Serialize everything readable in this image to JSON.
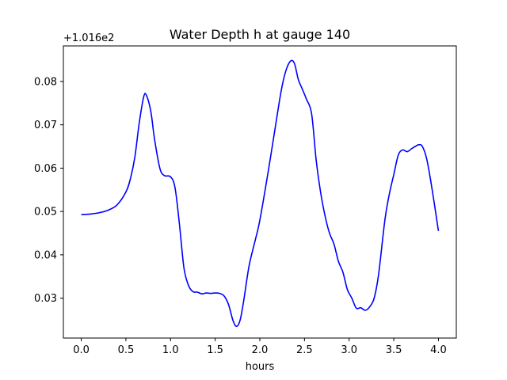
{
  "chart_data": {
    "type": "line",
    "title": "Water Depth h at gauge 140",
    "xlabel": "hours",
    "ylabel": "",
    "offset_label": "+1.016e2",
    "xlim": [
      -0.2,
      4.2
    ],
    "ylim": [
      0.0208,
      0.0882
    ],
    "xticks": [
      {
        "value": 0.0,
        "label": "0.0"
      },
      {
        "value": 0.5,
        "label": "0.5"
      },
      {
        "value": 1.0,
        "label": "1.0"
      },
      {
        "value": 1.5,
        "label": "1.5"
      },
      {
        "value": 2.0,
        "label": "2.0"
      },
      {
        "value": 2.5,
        "label": "2.5"
      },
      {
        "value": 3.0,
        "label": "3.0"
      },
      {
        "value": 3.5,
        "label": "3.5"
      },
      {
        "value": 4.0,
        "label": "4.0"
      }
    ],
    "yticks": [
      {
        "value": 0.03,
        "label": "0.03"
      },
      {
        "value": 0.04,
        "label": "0.04"
      },
      {
        "value": 0.05,
        "label": "0.05"
      },
      {
        "value": 0.06,
        "label": "0.06"
      },
      {
        "value": 0.07,
        "label": "0.07"
      },
      {
        "value": 0.08,
        "label": "0.08"
      }
    ],
    "grid": false,
    "series": [
      {
        "color": "#0000ff",
        "x": [
          0.0,
          0.1,
          0.2,
          0.3,
          0.4,
          0.5,
          0.55,
          0.6,
          0.65,
          0.7,
          0.73,
          0.78,
          0.82,
          0.88,
          0.93,
          1.0,
          1.05,
          1.1,
          1.15,
          1.2,
          1.25,
          1.3,
          1.35,
          1.4,
          1.45,
          1.5,
          1.55,
          1.6,
          1.65,
          1.7,
          1.74,
          1.78,
          1.82,
          1.88,
          1.95,
          2.0,
          2.1,
          2.2,
          2.25,
          2.3,
          2.35,
          2.39,
          2.43,
          2.47,
          2.52,
          2.58,
          2.63,
          2.68,
          2.73,
          2.78,
          2.83,
          2.88,
          2.93,
          2.98,
          3.03,
          3.08,
          3.13,
          3.18,
          3.23,
          3.28,
          3.33,
          3.4,
          3.45,
          3.5,
          3.55,
          3.6,
          3.65,
          3.7,
          3.74,
          3.78,
          3.82,
          3.87,
          3.93,
          4.0
        ],
        "y": [
          0.0493,
          0.0494,
          0.0497,
          0.0503,
          0.0515,
          0.0545,
          0.0575,
          0.0625,
          0.0705,
          0.0765,
          0.0768,
          0.073,
          0.0668,
          0.06,
          0.0583,
          0.058,
          0.0555,
          0.047,
          0.037,
          0.033,
          0.0315,
          0.0314,
          0.031,
          0.0312,
          0.0311,
          0.0312,
          0.0311,
          0.0305,
          0.0285,
          0.0248,
          0.0235,
          0.025,
          0.0295,
          0.0375,
          0.0435,
          0.048,
          0.06,
          0.073,
          0.079,
          0.083,
          0.0848,
          0.084,
          0.0805,
          0.0785,
          0.076,
          0.0725,
          0.062,
          0.0545,
          0.049,
          0.045,
          0.0425,
          0.0385,
          0.036,
          0.032,
          0.03,
          0.0277,
          0.0278,
          0.0272,
          0.028,
          0.03,
          0.0355,
          0.048,
          0.054,
          0.0585,
          0.063,
          0.0642,
          0.0638,
          0.0645,
          0.065,
          0.0654,
          0.065,
          0.062,
          0.055,
          0.0455
        ]
      }
    ]
  }
}
